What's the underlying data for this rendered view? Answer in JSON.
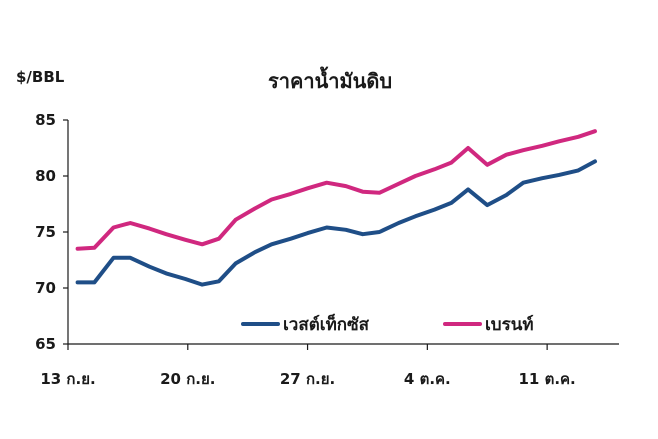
{
  "chart_data": {
    "type": "line",
    "title": "ราคาน้ำมันดิบ",
    "unit_label": "$/BBL",
    "ylim": [
      65,
      85
    ],
    "yticks": [
      65,
      70,
      75,
      80,
      85
    ],
    "x_tick_labels": [
      "13 ก.ย.",
      "20 ก.ย.",
      "27 ก.ย.",
      "4 ต.ค.",
      "11 ต.ค."
    ],
    "x_tick_positions": [
      0,
      5,
      10,
      15,
      20
    ],
    "x_range": [
      0,
      23
    ],
    "grid": false,
    "legend_position": "bottom-right",
    "x": [
      0.4,
      1.1,
      1.9,
      2.6,
      3.4,
      4.1,
      4.9,
      5.6,
      6.3,
      7.0,
      7.8,
      8.5,
      9.3,
      10.0,
      10.8,
      11.6,
      12.3,
      13.0,
      13.8,
      14.5,
      15.3,
      16.0,
      16.7,
      17.5,
      18.3,
      19.0,
      19.8,
      20.5,
      21.3,
      22.0
    ],
    "series": [
      {
        "name": "เวสต์เท็กซัส",
        "color": "#1f4e87",
        "values": [
          70.5,
          70.5,
          72.7,
          72.7,
          71.9,
          71.3,
          70.8,
          70.3,
          70.6,
          72.2,
          73.2,
          73.9,
          74.4,
          74.9,
          75.4,
          75.2,
          74.8,
          75.0,
          75.8,
          76.4,
          77.0,
          77.6,
          78.8,
          77.4,
          78.3,
          79.4,
          79.8,
          80.1,
          80.5,
          81.3
        ]
      },
      {
        "name": "เบรนท์",
        "color": "#d0287f",
        "values": [
          73.5,
          73.6,
          75.4,
          75.8,
          75.3,
          74.8,
          74.3,
          73.9,
          74.4,
          76.1,
          77.1,
          77.9,
          78.4,
          78.9,
          79.4,
          79.1,
          78.6,
          78.5,
          79.3,
          80.0,
          80.6,
          81.2,
          82.5,
          81.0,
          81.9,
          82.3,
          82.7,
          83.1,
          83.5,
          84.0
        ]
      }
    ]
  }
}
